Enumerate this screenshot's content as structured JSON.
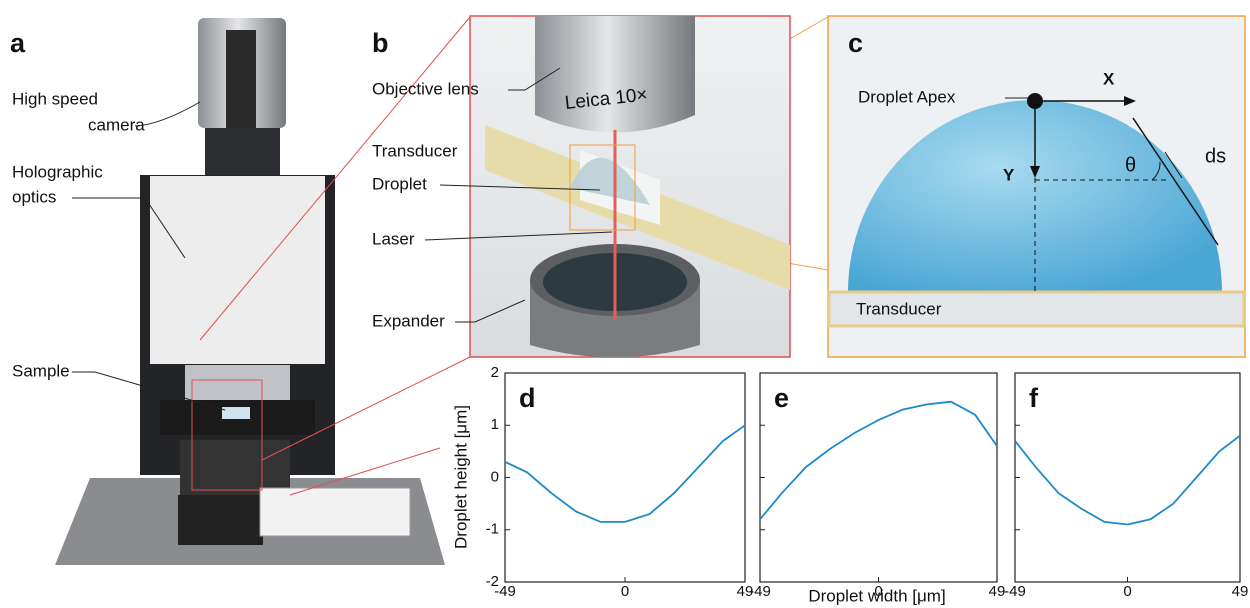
{
  "panels": {
    "a": {
      "letter": "a",
      "camera": [
        "High speed",
        "camera"
      ],
      "optics": [
        "Holographic",
        "optics"
      ],
      "sample": "Sample"
    },
    "b": {
      "letter": "b",
      "lens_text": "Leica 10×",
      "labels": [
        "Objective lens",
        "Transducer",
        "Droplet",
        "Laser",
        "Expander"
      ]
    },
    "c": {
      "letter": "c",
      "apex": "Droplet Apex",
      "x": "X",
      "y": "Y",
      "theta": "θ",
      "ds": "ds",
      "transducer": "Transducer"
    }
  },
  "axes": {
    "ylabel": "Droplet height [μm]",
    "xlabel": "Droplet width [μm]"
  },
  "chart_data": [
    {
      "type": "line",
      "label": "d",
      "color": "#1a8ac8",
      "x": [
        -49,
        -40,
        -30,
        -20,
        -10,
        0,
        10,
        20,
        30,
        40,
        49
      ],
      "values": [
        0.3,
        0.1,
        -0.3,
        -0.65,
        -0.85,
        -0.85,
        -0.7,
        -0.3,
        0.2,
        0.7,
        1.0
      ],
      "xlim": [
        -49,
        49
      ],
      "ylim": [
        -2,
        2
      ],
      "xticks": [
        -49,
        0,
        49
      ],
      "yticks": [
        -2,
        -1,
        0,
        1,
        2
      ],
      "ytick_labels": true
    },
    {
      "type": "line",
      "label": "e",
      "color": "#1a8ac8",
      "x": [
        -49,
        -40,
        -30,
        -20,
        -10,
        0,
        10,
        20,
        30,
        40,
        49
      ],
      "values": [
        -0.8,
        -0.3,
        0.2,
        0.55,
        0.85,
        1.1,
        1.3,
        1.4,
        1.45,
        1.2,
        0.6
      ],
      "xlim": [
        -49,
        49
      ],
      "ylim": [
        -2,
        2
      ],
      "xticks": [
        -49,
        0,
        49
      ],
      "yticks": [
        -2,
        -1,
        0,
        1,
        2
      ],
      "ytick_labels": false
    },
    {
      "type": "line",
      "label": "f",
      "color": "#1a8ac8",
      "x": [
        -49,
        -40,
        -30,
        -20,
        -10,
        0,
        10,
        20,
        30,
        40,
        49
      ],
      "values": [
        0.7,
        0.2,
        -0.3,
        -0.6,
        -0.85,
        -0.9,
        -0.8,
        -0.5,
        0.0,
        0.5,
        0.8
      ],
      "xlim": [
        -49,
        49
      ],
      "ylim": [
        -2,
        2
      ],
      "xticks": [
        -49,
        0,
        49
      ],
      "yticks": [
        -2,
        -1,
        0,
        1,
        2
      ],
      "ytick_labels": false
    }
  ]
}
